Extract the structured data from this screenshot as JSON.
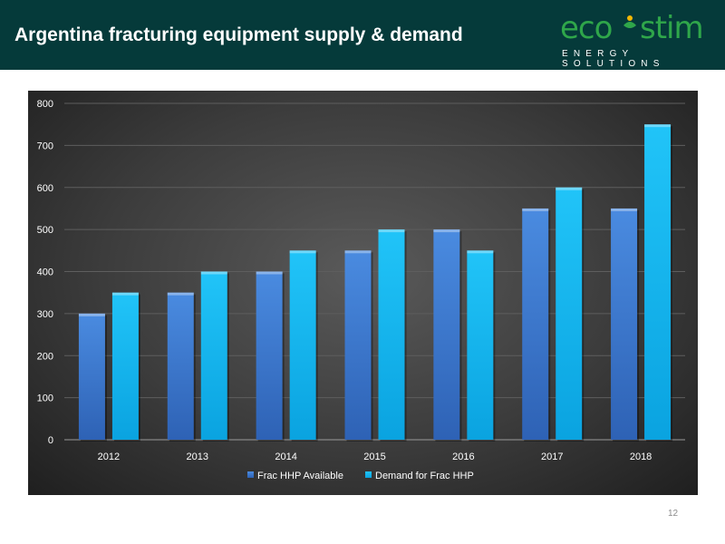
{
  "header": {
    "title": "Argentina fracturing equipment supply & demand",
    "background": "#053a3a"
  },
  "logo": {
    "word": "eco stim",
    "tagline": "ENERGY SOLUTIONS",
    "color": "#2fa64a",
    "accent_color": "#f2b705"
  },
  "page_number": "12",
  "chart_data": {
    "type": "bar",
    "categories": [
      "2012",
      "2013",
      "2014",
      "2015",
      "2016",
      "2017",
      "2018"
    ],
    "series": [
      {
        "name": "Frac HHP Available",
        "values": [
          300,
          350,
          400,
          450,
          500,
          550,
          550
        ],
        "color": "#3f7fd6"
      },
      {
        "name": "Demand for Frac HHP",
        "values": [
          350,
          400,
          450,
          500,
          450,
          600,
          750
        ],
        "color": "#16b8f2"
      }
    ],
    "ylim": [
      0,
      800
    ],
    "yticks": [
      "0",
      "100",
      "200",
      "300",
      "400",
      "500",
      "600",
      "700",
      "800"
    ],
    "grid": true,
    "legend_position": "bottom"
  }
}
